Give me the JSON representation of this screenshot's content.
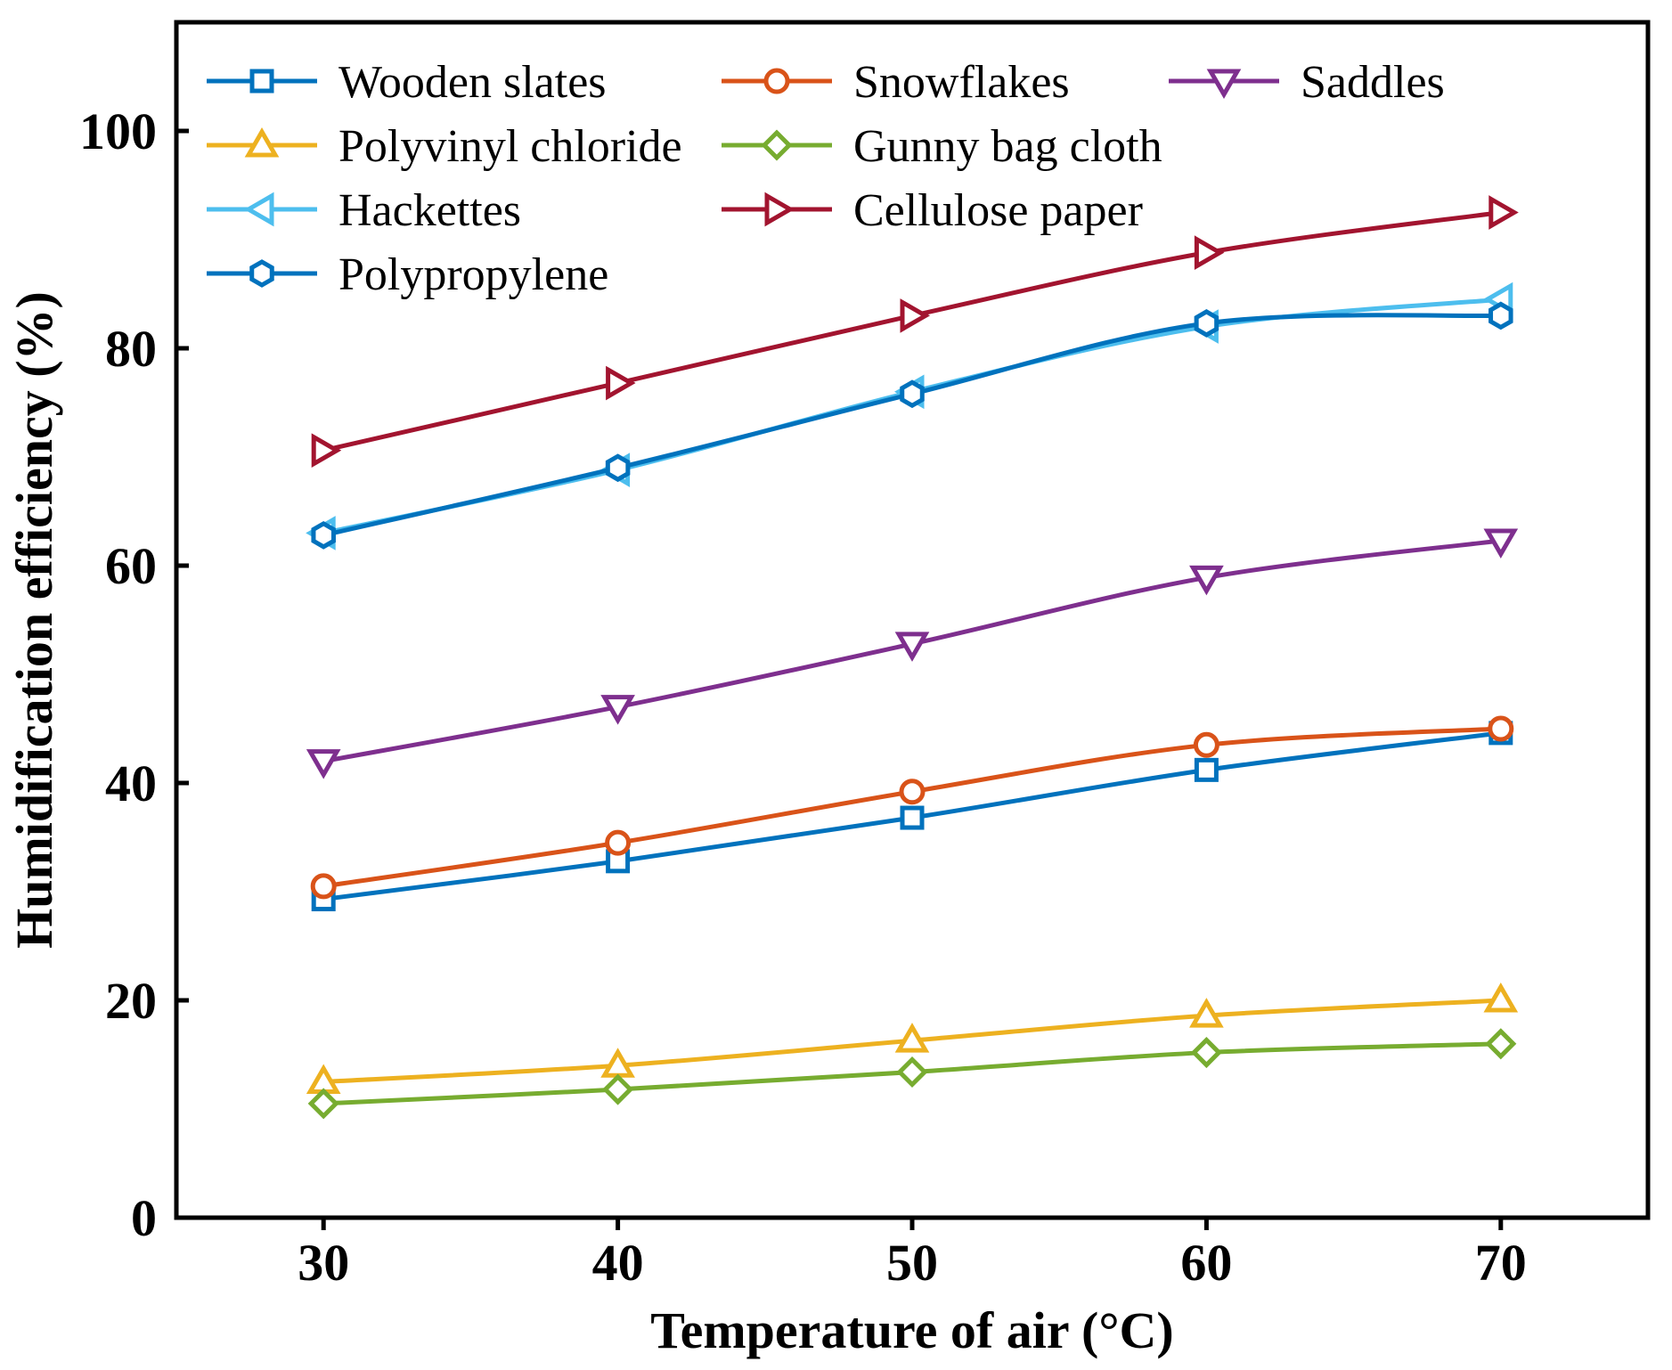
{
  "chart_data": {
    "type": "line",
    "title": "",
    "xlabel": "Temperature of air (°C)",
    "ylabel": "Humidification efficiency (%)",
    "xlim": [
      25,
      75
    ],
    "ylim": [
      0,
      110
    ],
    "x_ticks": [
      30,
      40,
      50,
      60,
      70
    ],
    "y_ticks": [
      0,
      20,
      40,
      60,
      80,
      100
    ],
    "grid": false,
    "legend_position": "top-left",
    "x": [
      30,
      40,
      50,
      60,
      70
    ],
    "series": [
      {
        "name": "Wooden slates",
        "color": "#0072BD",
        "marker": "square",
        "values": [
          29.3,
          32.8,
          36.8,
          41.2,
          44.6
        ]
      },
      {
        "name": "Snowflakes",
        "color": "#D95319",
        "marker": "circle",
        "values": [
          30.5,
          34.5,
          39.2,
          43.5,
          45.0
        ]
      },
      {
        "name": "Saddles",
        "color": "#7E2F8E",
        "marker": "triangle-down",
        "values": [
          42.0,
          47.0,
          52.8,
          58.9,
          62.3
        ]
      },
      {
        "name": "Polyvinyl chloride",
        "color": "#EDB120",
        "marker": "triangle-up",
        "values": [
          12.5,
          14.0,
          16.3,
          18.6,
          20.0
        ]
      },
      {
        "name": "Gunny bag cloth",
        "color": "#77AC30",
        "marker": "diamond",
        "values": [
          10.5,
          11.8,
          13.4,
          15.2,
          16.0
        ]
      },
      {
        "name": "Hackettes",
        "color": "#4DBEEE",
        "marker": "triangle-left",
        "values": [
          63.0,
          68.8,
          76.0,
          82.0,
          84.5
        ]
      },
      {
        "name": "Cellulose paper",
        "color": "#A2142F",
        "marker": "triangle-right",
        "values": [
          70.6,
          76.8,
          83.0,
          88.8,
          92.5
        ]
      },
      {
        "name": "Polypropylene",
        "color": "#0072BD",
        "marker": "hexagon",
        "values": [
          62.8,
          69.0,
          75.8,
          82.3,
          83.0
        ]
      }
    ]
  }
}
